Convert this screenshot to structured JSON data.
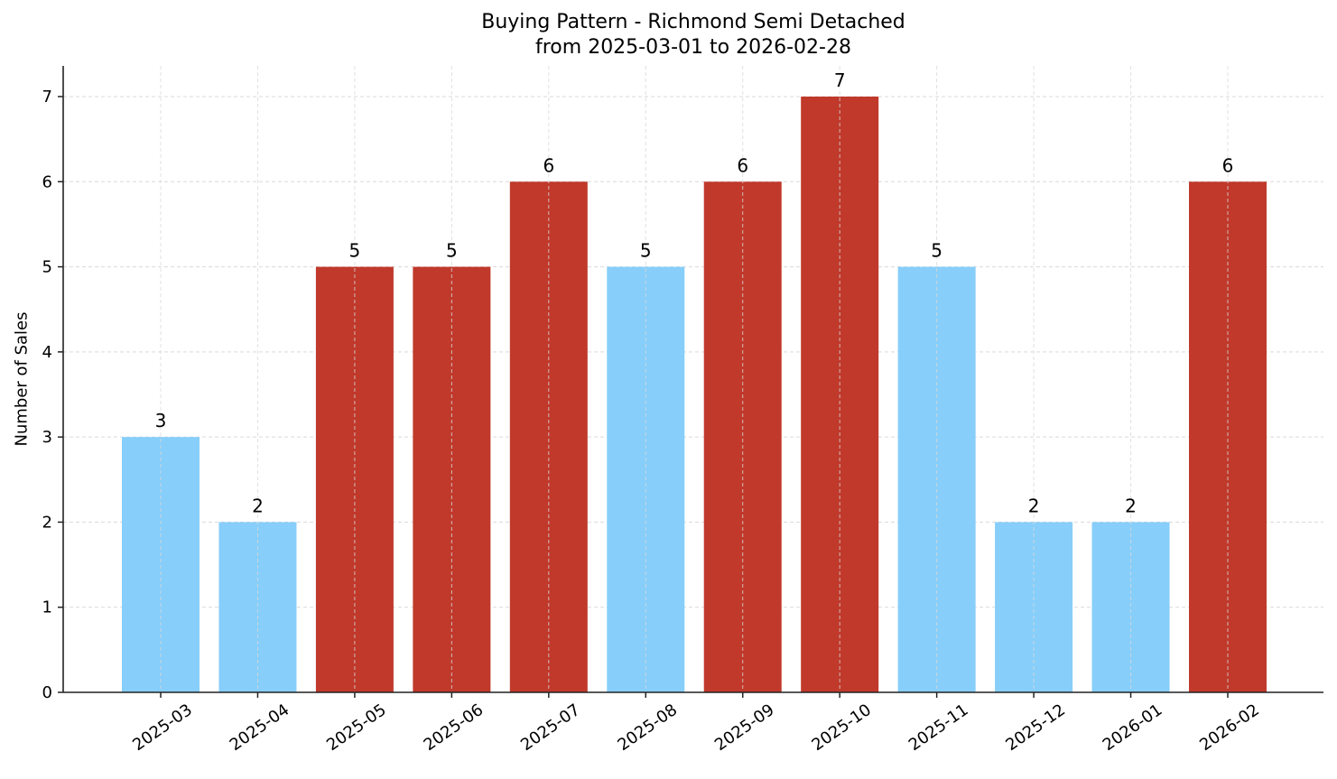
{
  "chart_data": {
    "type": "bar",
    "title": "Buying Pattern - Richmond Semi Detached",
    "subtitle": "from 2025-03-01 to 2026-02-28",
    "xlabel": "",
    "ylabel": "Number of Sales",
    "ylim": [
      0,
      7.35
    ],
    "yticks": [
      0,
      1,
      2,
      3,
      4,
      5,
      6,
      7
    ],
    "grid": true,
    "legend": null,
    "categories": [
      "2025-03",
      "2025-04",
      "2025-05",
      "2025-06",
      "2025-07",
      "2025-08",
      "2025-09",
      "2025-10",
      "2025-11",
      "2025-12",
      "2026-01",
      "2026-02"
    ],
    "values": [
      3,
      2,
      5,
      5,
      6,
      5,
      6,
      7,
      5,
      2,
      2,
      6
    ],
    "bar_colors": [
      "#87CEFA",
      "#87CEFA",
      "#C0392B",
      "#C0392B",
      "#C0392B",
      "#87CEFA",
      "#C0392B",
      "#C0392B",
      "#87CEFA",
      "#87CEFA",
      "#87CEFA",
      "#C0392B"
    ],
    "colors": {
      "high": "#C0392B",
      "low": "#87CEFA",
      "grid": "#d9d9d9",
      "axis": "#222222"
    }
  }
}
